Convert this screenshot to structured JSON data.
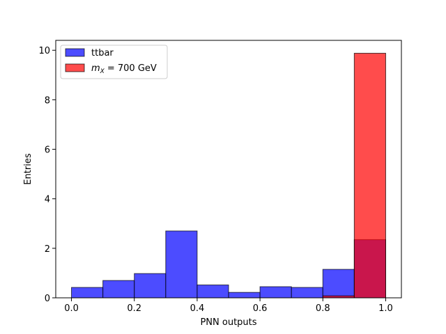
{
  "chart_data": {
    "type": "bar",
    "title": "",
    "xlabel": "PNN outputs",
    "ylabel": "Entries",
    "xlim": [
      -0.05,
      1.05
    ],
    "ylim": [
      0,
      10.4
    ],
    "xticks": [
      0.0,
      0.2,
      0.4,
      0.6,
      0.8,
      1.0
    ],
    "xtick_labels": [
      "0.0",
      "0.2",
      "0.4",
      "0.6",
      "0.8",
      "1.0"
    ],
    "yticks": [
      0,
      2,
      4,
      6,
      8,
      10
    ],
    "ytick_labels": [
      "0",
      "2",
      "4",
      "6",
      "8",
      "10"
    ],
    "bin_edges": [
      0.0,
      0.1,
      0.2,
      0.3,
      0.4,
      0.5,
      0.6,
      0.7,
      0.8,
      0.9,
      1.0
    ],
    "grid": false,
    "legend_position": "top-left",
    "series": [
      {
        "name": "ttbar",
        "color": "#0000ff",
        "alpha": 0.7,
        "values": [
          0.42,
          0.7,
          0.98,
          2.7,
          0.52,
          0.22,
          0.45,
          0.42,
          1.15,
          2.35
        ]
      },
      {
        "name": "= 700 GeV",
        "name_math": "m",
        "name_subscript": "X",
        "color": "#ff0000",
        "alpha": 0.7,
        "values": [
          0,
          0,
          0,
          0,
          0,
          0,
          0,
          0,
          0.08,
          9.88
        ]
      }
    ]
  }
}
